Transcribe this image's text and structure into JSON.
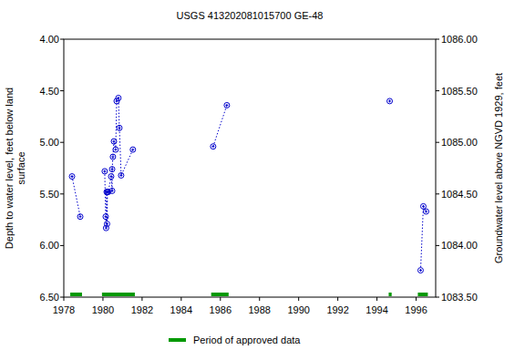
{
  "chart_data": {
    "type": "line",
    "title": "USGS 413202081015700 GE-48",
    "y_label": [
      "Depth to water level, feet below land",
      "surface"
    ],
    "y2_label": "Groundwater level above NGVD 1929, feet",
    "x": [
      1978.42,
      1978.84,
      null,
      1980.09,
      1980.14,
      1980.16,
      1980.19,
      1980.21,
      1980.23,
      1980.27,
      1980.42,
      1980.47,
      1980.47,
      1980.51,
      1980.56,
      1980.65,
      1980.7,
      1980.79,
      1980.84,
      1980.93,
      1981.53,
      null,
      1985.63,
      1986.33,
      null,
      1994.65,
      null,
      1996.23,
      1996.37,
      1996.51
    ],
    "series": [
      {
        "color": "#0000cc",
        "marker": "circle",
        "line_style": "dotted",
        "values": [
          5.33,
          5.72,
          null,
          5.28,
          5.72,
          5.83,
          5.48,
          5.79,
          5.48,
          5.48,
          5.33,
          5.47,
          5.26,
          5.14,
          4.99,
          5.07,
          4.6,
          4.57,
          4.86,
          5.32,
          5.07,
          null,
          5.04,
          4.64,
          null,
          4.6,
          null,
          6.24,
          5.62,
          5.67
        ]
      }
    ],
    "periods": {
      "name": "Period of approved data",
      "color": "#009900",
      "ranges": [
        [
          1978.33,
          1978.93
        ],
        [
          1979.95,
          1981.63
        ],
        [
          1985.53,
          1986.42
        ],
        [
          1994.6,
          1994.75
        ],
        [
          1996.09,
          1996.6
        ]
      ]
    },
    "xlim": [
      1978,
      1997
    ],
    "xticks": [
      1978,
      1980,
      1982,
      1984,
      1986,
      1988,
      1990,
      1992,
      1994,
      1996
    ],
    "ylim": [
      4,
      6.5
    ],
    "yticks": [
      {
        "value": 4,
        "label": "4.00"
      },
      {
        "value": 4.5,
        "label": "4.50"
      },
      {
        "value": 5,
        "label": "5.00"
      },
      {
        "value": 5.5,
        "label": "5.50"
      },
      {
        "value": 6,
        "label": "6.00"
      },
      {
        "value": 6.5,
        "label": "6.50"
      }
    ],
    "y2lim": [
      1086,
      1083.5
    ],
    "y2ticks": [
      {
        "value": 1086,
        "label": "1086.00"
      },
      {
        "value": 1085.5,
        "label": "1085.50"
      },
      {
        "value": 1085,
        "label": "1085.00"
      },
      {
        "value": 1084.5,
        "label": "1084.50"
      },
      {
        "value": 1084,
        "label": "1084.00"
      },
      {
        "value": 1083.5,
        "label": "1083.50"
      }
    ],
    "grid": false,
    "legend": "bottom"
  }
}
